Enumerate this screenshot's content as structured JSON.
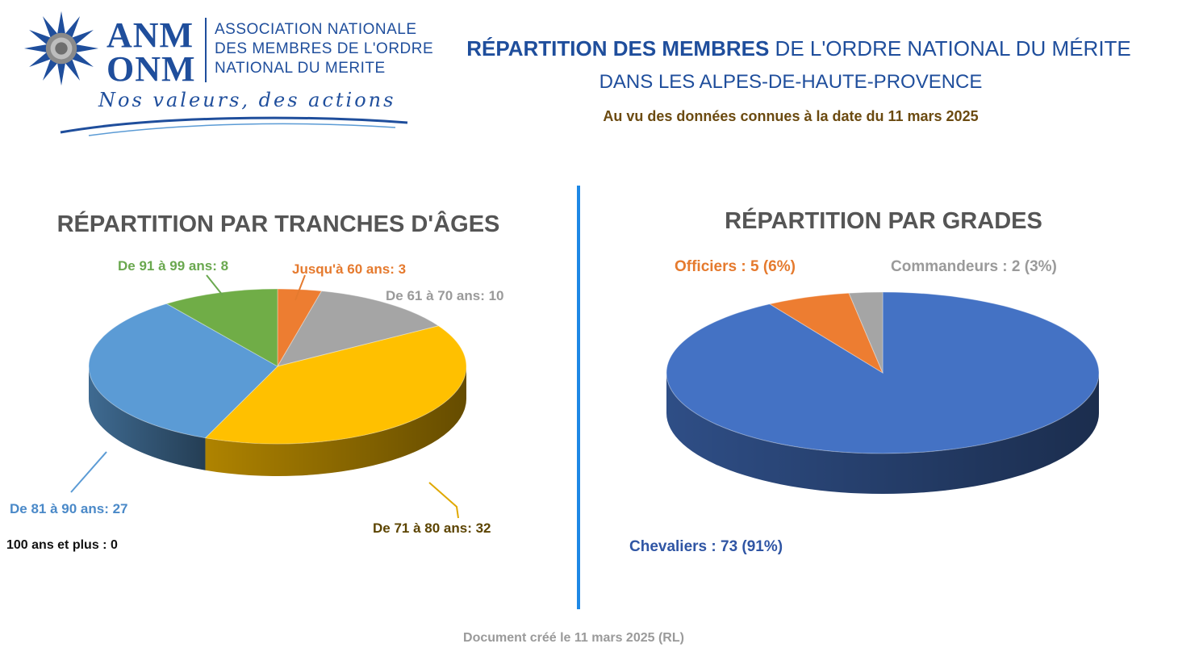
{
  "header": {
    "logo_acronym_1": "ANM",
    "logo_acronym_2": "ONM",
    "logo_line_1": "ASSOCIATION NATIONALE",
    "logo_line_2": "DES MEMBRES DE L'ORDRE",
    "logo_line_3": "NATIONAL DU MERITE",
    "logo_motto": "Nos valeurs, des actions",
    "title_bold": "RÉPARTITION DES MEMBRES",
    "title_rest": " DE L'ORDRE NATIONAL DU MÉRITE",
    "subtitle": "DANS LES ALPES-DE-HAUTE-PROVENCE",
    "date_note": "Au vu des données connues à la date du 11 mars 2025"
  },
  "footer": "Document créé le 11 mars 2025 (RL)",
  "colors": {
    "brand_blue": "#1f4e9c",
    "separator": "#1e88e5",
    "orange": "#ed7d31",
    "gray": "#a5a5a5",
    "yellow": "#ffc000",
    "light_blue": "#5b9bd5",
    "green": "#70ad47",
    "dark_blue": "#4472c4"
  },
  "chart_data": [
    {
      "type": "pie",
      "title": "RÉPARTITION PAR TRANCHES D'ÂGES",
      "categories": [
        "Jusqu'à 60 ans",
        "De 61 à 70 ans",
        "De 71 à 80 ans",
        "De 81 à 90 ans",
        "De 91 à 99 ans",
        "100 ans et plus"
      ],
      "values": [
        3,
        10,
        32,
        27,
        8,
        0
      ],
      "labels": [
        "Jusqu'à 60 ans: 3",
        "De 61 à 70 ans: 10",
        "De 71 à 80 ans: 32",
        "De 81 à 90 ans: 27",
        "De 91 à 99 ans: 8",
        "100 ans et plus : 0"
      ],
      "colors": [
        "#ed7d31",
        "#a5a5a5",
        "#ffc000",
        "#5b9bd5",
        "#70ad47",
        "#264478"
      ]
    },
    {
      "type": "pie",
      "title": "RÉPARTITION PAR GRADES",
      "categories": [
        "Chevaliers",
        "Officiers",
        "Commandeurs"
      ],
      "values": [
        73,
        5,
        2
      ],
      "labels": [
        "Chevaliers : 73 (91%)",
        "Officiers : 5 (6%)",
        "Commandeurs : 2 (3%)"
      ],
      "colors": [
        "#4472c4",
        "#ed7d31",
        "#a5a5a5"
      ]
    }
  ]
}
